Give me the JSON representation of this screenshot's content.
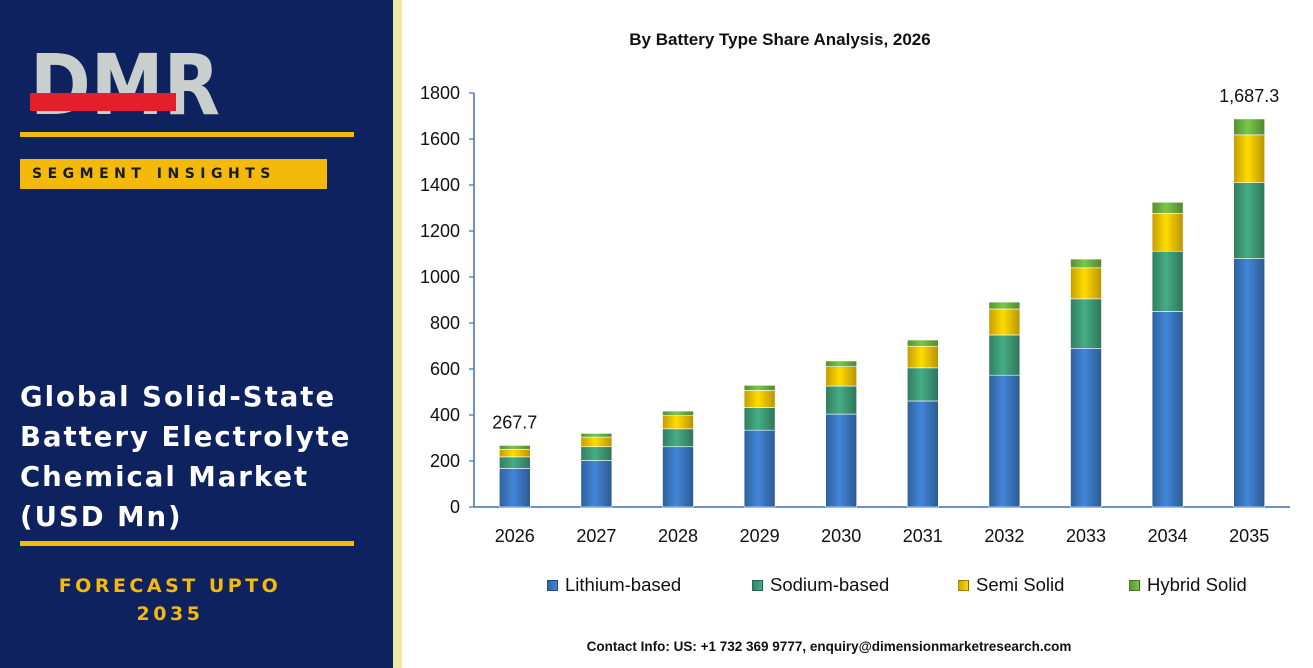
{
  "brand": {
    "logo_text": "DMR",
    "segment_label": "SEGMENT INSIGHTS",
    "market_title": "Global Solid-State Battery Electrolyte Chemical Market (USD Mn)",
    "forecast_line1": "FORECAST UPTO",
    "forecast_line2": "2035"
  },
  "colors": {
    "panel_bg": "#0f2260",
    "accent_gold": "#f5b90a",
    "divider": "#f3e9a6",
    "logo_grey": "#c9cfcc",
    "logo_red": "#e3202a"
  },
  "icons": {
    "logo": "dmr-logo"
  },
  "footer": {
    "contact": "Contact Info: US: +1 732 369 9777, enquiry@dimensionmarketresearch.com"
  },
  "chart_data": {
    "type": "bar",
    "stacked": true,
    "title": "By Battery Type Share Analysis, 2026",
    "xlabel": "",
    "ylabel": "",
    "ylim": [
      0,
      1800
    ],
    "yticks": [
      0,
      200,
      400,
      600,
      800,
      1000,
      1200,
      1400,
      1600,
      1800
    ],
    "grid": false,
    "legend_position": "bottom",
    "categories": [
      "2026",
      "2027",
      "2028",
      "2029",
      "2030",
      "2031",
      "2032",
      "2033",
      "2034",
      "2035"
    ],
    "series": [
      {
        "name": "Lithium-based",
        "color": "#3b78c2",
        "values": [
          168,
          202,
          262,
          334,
          404,
          461,
          573,
          690,
          850,
          1080
        ]
      },
      {
        "name": "Sodium-based",
        "color": "#3e9b78",
        "values": [
          50,
          60,
          78,
          99,
          122,
          144,
          175,
          215,
          262,
          330
        ]
      },
      {
        "name": "Semi Solid",
        "color": "#f6c400",
        "values": [
          33,
          42,
          57,
          74,
          84,
          94,
          113,
          135,
          165,
          208
        ]
      },
      {
        "name": "Hybrid Solid",
        "color": "#6db33f",
        "values": [
          16.7,
          16,
          20,
          22,
          25,
          27,
          30,
          38,
          48,
          69.3
        ]
      }
    ],
    "annotations": [
      {
        "category": "2026",
        "text": "267.7"
      },
      {
        "category": "2035",
        "text": "1,687.3"
      }
    ]
  }
}
